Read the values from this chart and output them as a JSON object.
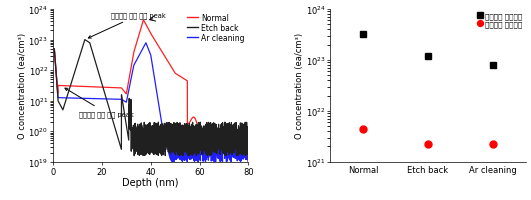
{
  "left_xlabel": "Depth (nm)",
  "left_ylabel": "O concentration (ea/cm³)",
  "left_xlim": [
    0,
    80
  ],
  "right_ylabel": "O concentration (ea/cm³)",
  "annotation1": "계면에서 산소 농도 peak",
  "annotation2": "박막에서 산소 농도 peak",
  "legend_line": [
    "Normal",
    "Etch back",
    "Ar cleaning"
  ],
  "legend_scatter": [
    "계면에서 산소농도",
    "박막에서 산소농도"
  ],
  "line_colors": [
    "#FF2020",
    "#202020",
    "#2020FF"
  ],
  "scatter_categories": [
    "Normal",
    "Etch back",
    "Ar cleaning"
  ],
  "scatter_interface": [
    3.2e+23,
    1.2e+23,
    8e+22
  ],
  "scatter_film": [
    4.5e+21,
    2.2e+21,
    2.2e+21
  ],
  "background_color": "#ffffff"
}
